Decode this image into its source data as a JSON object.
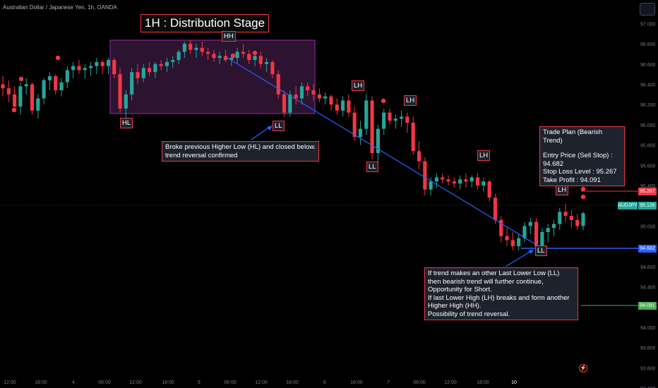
{
  "symbol": "Australian Dollar / Japanese Yen, 1h, OANDA",
  "title": "1H : Distribution Stage",
  "labels": {
    "hh": "HH",
    "hl": "HL",
    "ll1": "LL",
    "lh1": "LH",
    "ll2": "LL",
    "lh2": "LH",
    "lh3": "LH",
    "lh4": "LH",
    "ll3": "LL"
  },
  "annotation_broke": {
    "line1": "Broke previous Higher Low (HL) and closed below.",
    "line2": "trend reversal confirmed"
  },
  "trade_plan": {
    "title": "Trade Plan (Bearish Trend)",
    "entry": "Entry Price (Sell Stop) : 94.682",
    "stop": "Stop Loss Level : 95.267",
    "tp": "Take Profit : 94.091"
  },
  "annotation_trend": {
    "line1": "If trend makes an other Last Lower Low (LL)",
    "line2": "then bearish trend will further continue,",
    "line3": "Opportunity for Short.",
    "line4": "If last Lower High (LH) breaks and form another",
    "line5": "Higher High (HH).",
    "line6": "Possibility of trend reversal."
  },
  "price_tags": {
    "stop": "95.267",
    "ticker": "AUDJPY",
    "current": "95.126",
    "entry": "94.682",
    "tp": "94.091"
  },
  "colors": {
    "up": "#26a69a",
    "down": "#f23645",
    "trendline": "#2962ff",
    "entry": "#2962ff",
    "tp": "#4caf50"
  },
  "chart_data": {
    "type": "candlestick",
    "symbol": "AUDJPY",
    "timeframe": "1h",
    "ylim": [
      93.4,
      97.1
    ],
    "y_ticks": [
      "97.000",
      "96.800",
      "96.600",
      "96.400",
      "96.200",
      "96.000",
      "95.800",
      "95.600",
      "95.400",
      "95.200",
      "95.000",
      "94.800",
      "94.600",
      "94.400",
      "94.200",
      "94.000",
      "93.800",
      "93.600",
      "93.400"
    ],
    "x_ticks": [
      "12:00",
      "18:00",
      "4",
      "06:00",
      "12:00",
      "18:00",
      "5",
      "06:00",
      "12:00",
      "18:00",
      "6",
      "18:00",
      "7",
      "06:00",
      "12:00",
      "18:00",
      "10"
    ],
    "levels": {
      "stop_loss": 95.267,
      "current": 95.126,
      "entry": 94.682,
      "take_profit": 94.091
    },
    "candles": [
      [
        96.4,
        96.48,
        96.28,
        96.36
      ],
      [
        96.36,
        96.44,
        96.22,
        96.3
      ],
      [
        96.3,
        96.38,
        96.14,
        96.18
      ],
      [
        96.18,
        96.42,
        96.1,
        96.38
      ],
      [
        96.38,
        96.46,
        96.3,
        96.4
      ],
      [
        96.4,
        96.42,
        96.1,
        96.14
      ],
      [
        96.14,
        96.3,
        96.06,
        96.26
      ],
      [
        96.26,
        96.46,
        96.2,
        96.44
      ],
      [
        96.44,
        96.52,
        96.34,
        96.48
      ],
      [
        96.48,
        96.5,
        96.3,
        96.34
      ],
      [
        96.34,
        96.46,
        96.28,
        96.42
      ],
      [
        96.42,
        96.58,
        96.36,
        96.54
      ],
      [
        96.54,
        96.62,
        96.46,
        96.58
      ],
      [
        96.58,
        96.64,
        96.5,
        96.54
      ],
      [
        96.54,
        96.6,
        96.46,
        96.56
      ],
      [
        96.56,
        96.62,
        96.48,
        96.58
      ],
      [
        96.58,
        96.66,
        96.5,
        96.62
      ],
      [
        96.62,
        96.64,
        96.5,
        96.58
      ],
      [
        96.58,
        96.66,
        96.5,
        96.64
      ],
      [
        96.64,
        96.66,
        96.46,
        96.5
      ],
      [
        96.5,
        96.56,
        96.12,
        96.16
      ],
      [
        96.16,
        96.34,
        96.06,
        96.3
      ],
      [
        96.3,
        96.56,
        96.24,
        96.52
      ],
      [
        96.52,
        96.6,
        96.4,
        96.46
      ],
      [
        96.46,
        96.6,
        96.42,
        96.56
      ],
      [
        96.56,
        96.62,
        96.48,
        96.52
      ],
      [
        96.52,
        96.62,
        96.46,
        96.6
      ],
      [
        96.6,
        96.64,
        96.54,
        96.58
      ],
      [
        96.58,
        96.66,
        96.52,
        96.62
      ],
      [
        96.62,
        96.68,
        96.56,
        96.64
      ],
      [
        96.64,
        96.74,
        96.6,
        96.72
      ],
      [
        96.72,
        96.82,
        96.66,
        96.8
      ],
      [
        96.8,
        96.84,
        96.7,
        96.74
      ],
      [
        96.74,
        96.8,
        96.66,
        96.76
      ],
      [
        96.76,
        96.82,
        96.68,
        96.72
      ],
      [
        96.72,
        96.76,
        96.64,
        96.7
      ],
      [
        96.7,
        96.74,
        96.62,
        96.66
      ],
      [
        96.66,
        96.72,
        96.6,
        96.68
      ],
      [
        96.68,
        96.74,
        96.62,
        96.64
      ],
      [
        96.64,
        96.7,
        96.58,
        96.66
      ],
      [
        96.66,
        96.76,
        96.6,
        96.72
      ],
      [
        96.72,
        96.8,
        96.66,
        96.7
      ],
      [
        96.7,
        96.74,
        96.6,
        96.64
      ],
      [
        96.64,
        96.7,
        96.58,
        96.68
      ],
      [
        96.68,
        96.72,
        96.56,
        96.6
      ],
      [
        96.6,
        96.66,
        96.52,
        96.62
      ],
      [
        96.62,
        96.64,
        96.46,
        96.5
      ],
      [
        96.5,
        96.54,
        96.26,
        96.3
      ],
      [
        96.3,
        96.34,
        96.08,
        96.12
      ],
      [
        96.12,
        96.34,
        96.08,
        96.3
      ],
      [
        96.3,
        96.38,
        96.2,
        96.26
      ],
      [
        96.26,
        96.42,
        96.2,
        96.38
      ],
      [
        96.38,
        96.42,
        96.28,
        96.34
      ],
      [
        96.34,
        96.4,
        96.24,
        96.3
      ],
      [
        96.3,
        96.36,
        96.22,
        96.26
      ],
      [
        96.26,
        96.32,
        96.2,
        96.28
      ],
      [
        96.28,
        96.3,
        96.14,
        96.2
      ],
      [
        96.2,
        96.26,
        96.1,
        96.14
      ],
      [
        96.14,
        96.28,
        96.08,
        96.24
      ],
      [
        96.24,
        96.3,
        96.08,
        96.12
      ],
      [
        96.12,
        96.18,
        95.84,
        95.88
      ],
      [
        95.88,
        96.04,
        95.8,
        95.96
      ],
      [
        95.96,
        96.3,
        95.9,
        96.24
      ],
      [
        96.24,
        96.28,
        95.66,
        95.72
      ],
      [
        95.72,
        96.0,
        95.62,
        95.96
      ],
      [
        95.96,
        96.16,
        95.9,
        96.12
      ],
      [
        96.12,
        96.16,
        96.0,
        96.04
      ],
      [
        96.04,
        96.1,
        95.96,
        96.06
      ],
      [
        96.06,
        96.14,
        95.98,
        96.08
      ],
      [
        96.08,
        96.12,
        95.92,
        96.02
      ],
      [
        96.02,
        96.08,
        95.7,
        95.74
      ],
      [
        95.74,
        95.84,
        95.56,
        95.64
      ],
      [
        95.64,
        95.68,
        95.3,
        95.36
      ],
      [
        95.36,
        95.48,
        95.3,
        95.44
      ],
      [
        95.44,
        95.52,
        95.38,
        95.48
      ],
      [
        95.48,
        95.52,
        95.42,
        95.46
      ],
      [
        95.46,
        95.5,
        95.4,
        95.44
      ],
      [
        95.44,
        95.48,
        95.38,
        95.42
      ],
      [
        95.42,
        95.5,
        95.36,
        95.46
      ],
      [
        95.46,
        95.52,
        95.38,
        95.44
      ],
      [
        95.44,
        95.5,
        95.38,
        95.48
      ],
      [
        95.48,
        95.52,
        95.36,
        95.4
      ],
      [
        95.4,
        95.48,
        95.34,
        95.44
      ],
      [
        95.44,
        95.46,
        95.24,
        95.28
      ],
      [
        95.28,
        95.32,
        95.02,
        95.06
      ],
      [
        95.06,
        95.1,
        94.84,
        94.9
      ],
      [
        94.9,
        94.98,
        94.8,
        94.86
      ],
      [
        94.86,
        94.94,
        94.76,
        94.8
      ],
      [
        94.8,
        94.92,
        94.76,
        94.88
      ],
      [
        94.88,
        95.04,
        94.84,
        95.0
      ],
      [
        95.0,
        95.08,
        94.92,
        95.04
      ],
      [
        95.04,
        95.08,
        94.72,
        94.8
      ],
      [
        94.8,
        94.98,
        94.7,
        94.94
      ],
      [
        94.94,
        95.02,
        94.84,
        94.98
      ],
      [
        94.98,
        95.06,
        94.9,
        95.02
      ],
      [
        95.02,
        95.18,
        94.96,
        95.14
      ],
      [
        95.14,
        95.22,
        95.04,
        95.1
      ],
      [
        95.1,
        95.16,
        94.98,
        95.06
      ],
      [
        95.06,
        95.12,
        94.96,
        95.0
      ],
      [
        95.0,
        95.14,
        94.96,
        95.126
      ]
    ]
  }
}
